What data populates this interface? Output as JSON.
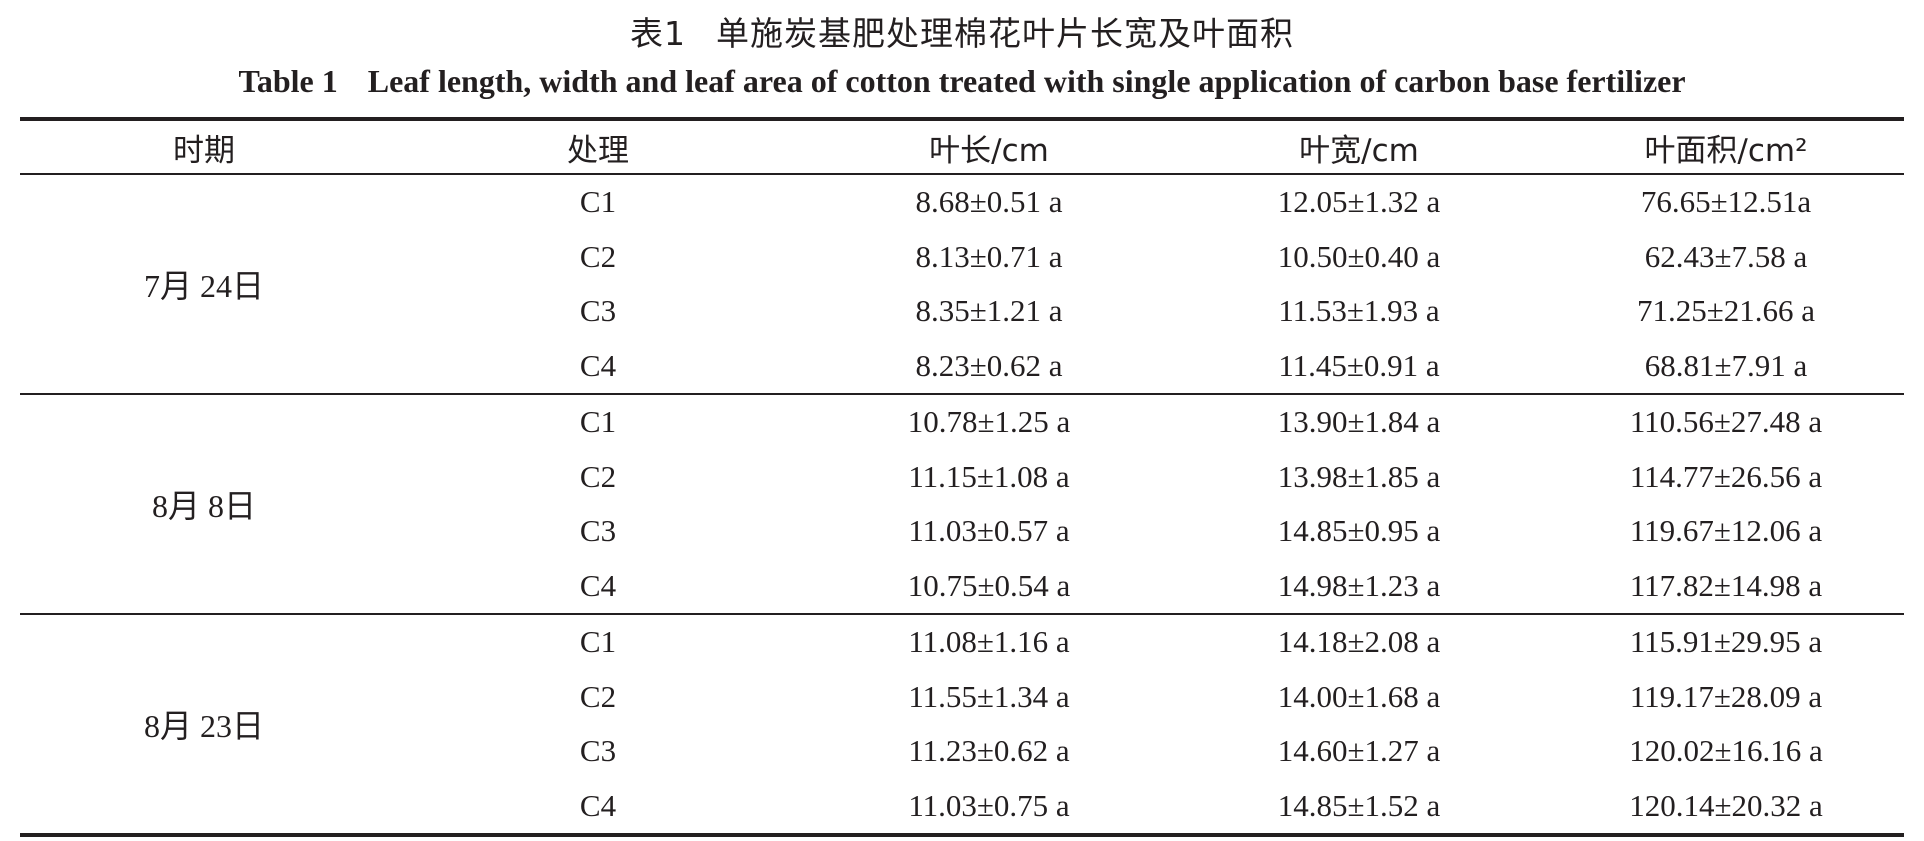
{
  "caption": {
    "cn_number": "表1",
    "cn_title": "单施炭基肥处理棉花叶片长宽及叶面积",
    "en_number": "Table 1",
    "en_title": "Leaf length, width and leaf area of cotton treated with single application of carbon base fertilizer"
  },
  "table": {
    "headers": [
      "时期",
      "处理",
      "叶长/cm",
      "叶宽/cm",
      "叶面积/cm²"
    ],
    "groups": [
      {
        "period": "7月 24日",
        "rows": [
          {
            "treatment": "C1",
            "length": "8.68±0.51 a",
            "width": "12.05±1.32 a",
            "area": "76.65±12.51a"
          },
          {
            "treatment": "C2",
            "length": "8.13±0.71 a",
            "width": "10.50±0.40 a",
            "area": "62.43±7.58 a"
          },
          {
            "treatment": "C3",
            "length": "8.35±1.21 a",
            "width": "11.53±1.93 a",
            "area": "71.25±21.66 a"
          },
          {
            "treatment": "C4",
            "length": "8.23±0.62 a",
            "width": "11.45±0.91 a",
            "area": "68.81±7.91 a"
          }
        ]
      },
      {
        "period": "8月 8日",
        "rows": [
          {
            "treatment": "C1",
            "length": "10.78±1.25 a",
            "width": "13.90±1.84 a",
            "area": "110.56±27.48 a"
          },
          {
            "treatment": "C2",
            "length": "11.15±1.08 a",
            "width": "13.98±1.85 a",
            "area": "114.77±26.56 a"
          },
          {
            "treatment": "C3",
            "length": "11.03±0.57 a",
            "width": "14.85±0.95 a",
            "area": "119.67±12.06 a"
          },
          {
            "treatment": "C4",
            "length": "10.75±0.54 a",
            "width": "14.98±1.23 a",
            "area": "117.82±14.98 a"
          }
        ]
      },
      {
        "period": "8月 23日",
        "rows": [
          {
            "treatment": "C1",
            "length": "11.08±1.16 a",
            "width": "14.18±2.08 a",
            "area": "115.91±29.95 a"
          },
          {
            "treatment": "C2",
            "length": "11.55±1.34 a",
            "width": "14.00±1.68 a",
            "area": "119.17±28.09 a"
          },
          {
            "treatment": "C3",
            "length": "11.23±0.62 a",
            "width": "14.60±1.27 a",
            "area": "120.02±16.16 a"
          },
          {
            "treatment": "C4",
            "length": "11.03±0.75 a",
            "width": "14.85±1.52 a",
            "area": "120.14±20.32 a"
          }
        ]
      }
    ]
  }
}
